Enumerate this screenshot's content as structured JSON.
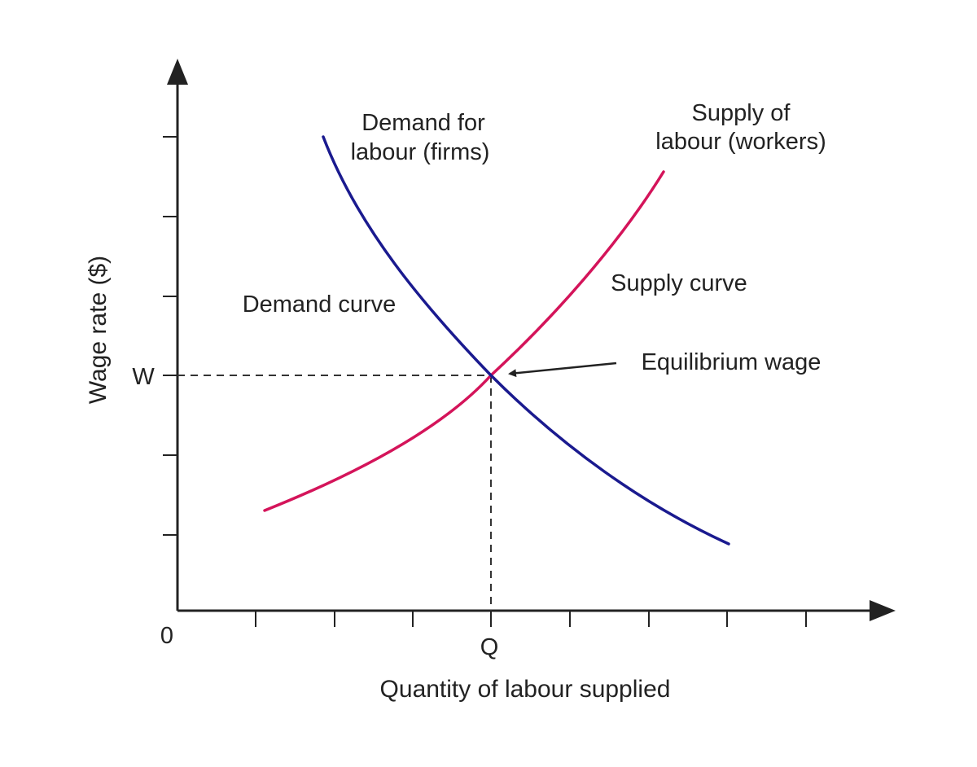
{
  "colors": {
    "demand": "#1a1a8f",
    "supply": "#d4145a",
    "axis": "#222222",
    "guide": "#333333"
  },
  "diagram": {
    "y_axis_label": "Wage rate ($)",
    "x_axis_label": "Quantity of labour supplied",
    "origin_label": "0",
    "w_label": "W",
    "q_label": "Q",
    "demand_title_line1": "Demand for",
    "demand_title_line2": "labour (firms)",
    "supply_title_line1": "Supply of",
    "supply_title_line2": "labour (workers)",
    "demand_curve_label": "Demand curve",
    "supply_curve_label": "Supply curve",
    "equilibrium_label": "Equilibrium wage"
  }
}
